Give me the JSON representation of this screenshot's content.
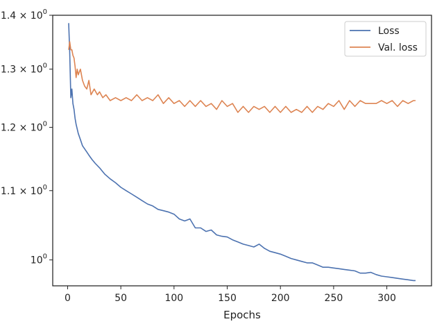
{
  "chart_data": {
    "type": "line",
    "title": "",
    "xlabel": "Epochs",
    "ylabel": "",
    "yscale": "log",
    "xlim": [
      -14,
      342
    ],
    "ylim": [
      0.965,
      1.4
    ],
    "grid": false,
    "legend_position": "top-right",
    "x_ticks": [
      {
        "value": 0,
        "label": "0"
      },
      {
        "value": 50,
        "label": "50"
      },
      {
        "value": 100,
        "label": "100"
      },
      {
        "value": 150,
        "label": "150"
      },
      {
        "value": 200,
        "label": "200"
      },
      {
        "value": 250,
        "label": "250"
      },
      {
        "value": 300,
        "label": "300"
      }
    ],
    "y_ticks": [
      {
        "value": 1.0,
        "label": "10",
        "exp": "0"
      },
      {
        "value": 1.1,
        "label": "1.1 × 10",
        "exp": "0"
      },
      {
        "value": 1.2,
        "label": "1.2 × 10",
        "exp": "0"
      },
      {
        "value": 1.3,
        "label": "1.3 × 10",
        "exp": "0"
      },
      {
        "value": 1.4,
        "label": "1.4 × 10",
        "exp": "0"
      }
    ],
    "series": [
      {
        "name": "Loss",
        "color": "#4c72b0",
        "x": [
          1,
          2,
          3,
          4,
          5,
          6,
          7,
          8,
          10,
          12,
          14,
          16,
          18,
          20,
          23,
          26,
          30,
          35,
          40,
          45,
          50,
          55,
          60,
          65,
          70,
          75,
          80,
          85,
          90,
          95,
          100,
          105,
          110,
          115,
          120,
          125,
          130,
          135,
          140,
          145,
          150,
          155,
          160,
          165,
          170,
          175,
          180,
          185,
          190,
          195,
          200,
          205,
          210,
          215,
          220,
          225,
          230,
          235,
          240,
          245,
          250,
          255,
          260,
          265,
          270,
          275,
          280,
          285,
          290,
          295,
          300,
          305,
          310,
          315,
          320,
          325,
          327
        ],
        "values": [
          1.385,
          1.33,
          1.25,
          1.265,
          1.24,
          1.23,
          1.215,
          1.205,
          1.19,
          1.18,
          1.17,
          1.165,
          1.16,
          1.155,
          1.148,
          1.142,
          1.135,
          1.125,
          1.118,
          1.112,
          1.105,
          1.1,
          1.095,
          1.09,
          1.085,
          1.08,
          1.077,
          1.072,
          1.07,
          1.068,
          1.065,
          1.058,
          1.055,
          1.058,
          1.045,
          1.045,
          1.04,
          1.042,
          1.035,
          1.033,
          1.032,
          1.028,
          1.025,
          1.022,
          1.02,
          1.018,
          1.022,
          1.016,
          1.012,
          1.01,
          1.008,
          1.005,
          1.002,
          1.0,
          0.998,
          0.996,
          0.996,
          0.993,
          0.99,
          0.99,
          0.989,
          0.988,
          0.987,
          0.986,
          0.985,
          0.982,
          0.982,
          0.983,
          0.98,
          0.978,
          0.977,
          0.976,
          0.975,
          0.974,
          0.973,
          0.972,
          0.972
        ]
      },
      {
        "name": "Val. loss",
        "color": "#dd8452",
        "x": [
          1,
          2,
          3,
          4,
          5,
          6,
          7,
          8,
          9,
          10,
          12,
          14,
          16,
          18,
          20,
          22,
          25,
          28,
          30,
          33,
          36,
          40,
          45,
          50,
          55,
          60,
          65,
          70,
          75,
          80,
          85,
          90,
          95,
          100,
          105,
          110,
          115,
          120,
          125,
          130,
          135,
          140,
          145,
          150,
          155,
          160,
          165,
          170,
          175,
          180,
          185,
          190,
          195,
          200,
          205,
          210,
          215,
          220,
          225,
          230,
          235,
          240,
          245,
          250,
          255,
          260,
          265,
          270,
          275,
          280,
          285,
          290,
          295,
          300,
          305,
          310,
          315,
          320,
          325,
          327
        ],
        "values": [
          1.335,
          1.35,
          1.335,
          1.335,
          1.325,
          1.32,
          1.305,
          1.285,
          1.3,
          1.29,
          1.3,
          1.28,
          1.27,
          1.265,
          1.28,
          1.255,
          1.265,
          1.255,
          1.26,
          1.25,
          1.255,
          1.245,
          1.25,
          1.245,
          1.25,
          1.245,
          1.255,
          1.245,
          1.25,
          1.245,
          1.255,
          1.24,
          1.25,
          1.24,
          1.245,
          1.235,
          1.245,
          1.235,
          1.245,
          1.235,
          1.24,
          1.23,
          1.245,
          1.235,
          1.24,
          1.225,
          1.235,
          1.225,
          1.235,
          1.23,
          1.235,
          1.225,
          1.235,
          1.225,
          1.235,
          1.225,
          1.23,
          1.225,
          1.235,
          1.225,
          1.235,
          1.23,
          1.24,
          1.235,
          1.245,
          1.23,
          1.245,
          1.235,
          1.245,
          1.24,
          1.24,
          1.24,
          1.245,
          1.24,
          1.245,
          1.235,
          1.245,
          1.24,
          1.245,
          1.245
        ]
      }
    ]
  }
}
